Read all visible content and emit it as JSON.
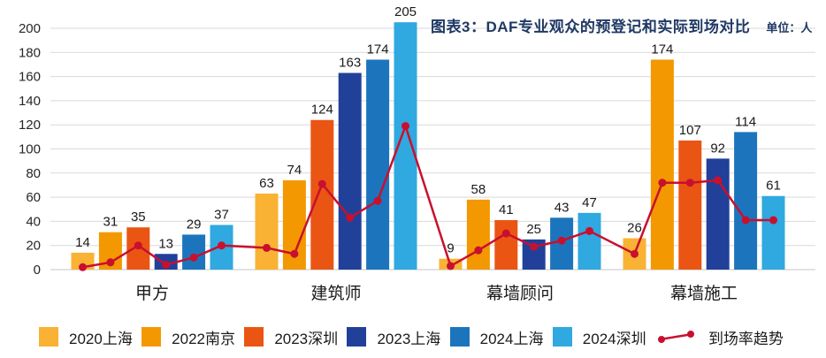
{
  "title": "图表3：DAF专业观众的预登记和实际到场对比",
  "unit_label": "单位：人",
  "chart_data": {
    "type": "bar+line",
    "title": "图表3：DAF专业观众的预登记和实际到场对比",
    "unit": "单位：人",
    "categories": [
      "甲方",
      "建筑师",
      "幕墙顾问",
      "幕墙施工"
    ],
    "series": [
      {
        "name": "2020上海",
        "color": "#F9B233",
        "values": [
          14,
          63,
          9,
          26
        ]
      },
      {
        "name": "2022南京",
        "color": "#F39800",
        "values": [
          31,
          74,
          58,
          174
        ]
      },
      {
        "name": "2023深圳",
        "color": "#EA5514",
        "values": [
          35,
          124,
          41,
          107
        ]
      },
      {
        "name": "2023上海",
        "color": "#21409A",
        "values": [
          13,
          163,
          25,
          92
        ]
      },
      {
        "name": "2024上海",
        "color": "#1C75BC",
        "values": [
          29,
          174,
          43,
          114
        ]
      },
      {
        "name": "2024深圳",
        "color": "#30A8E0",
        "values": [
          37,
          205,
          47,
          61
        ]
      }
    ],
    "trend_line": {
      "name": "到场率趋势",
      "color": "#C8102E",
      "values_by_category": [
        [
          2,
          6,
          20,
          4,
          10,
          20
        ],
        [
          18,
          13,
          71,
          43,
          57,
          119
        ],
        [
          3,
          16,
          30,
          19,
          24,
          32
        ],
        [
          13,
          72,
          72,
          74,
          41,
          41
        ]
      ]
    },
    "ylim": [
      0,
      200
    ],
    "ytick_step": 20,
    "grid": true,
    "legend_position": "bottom"
  },
  "colors": {
    "grid": "#D9D9D9",
    "baseline": "#C6C6C6",
    "axis_text": "#262626",
    "value_text": "#1A1A1A",
    "category_text": "#1A1A1A"
  }
}
